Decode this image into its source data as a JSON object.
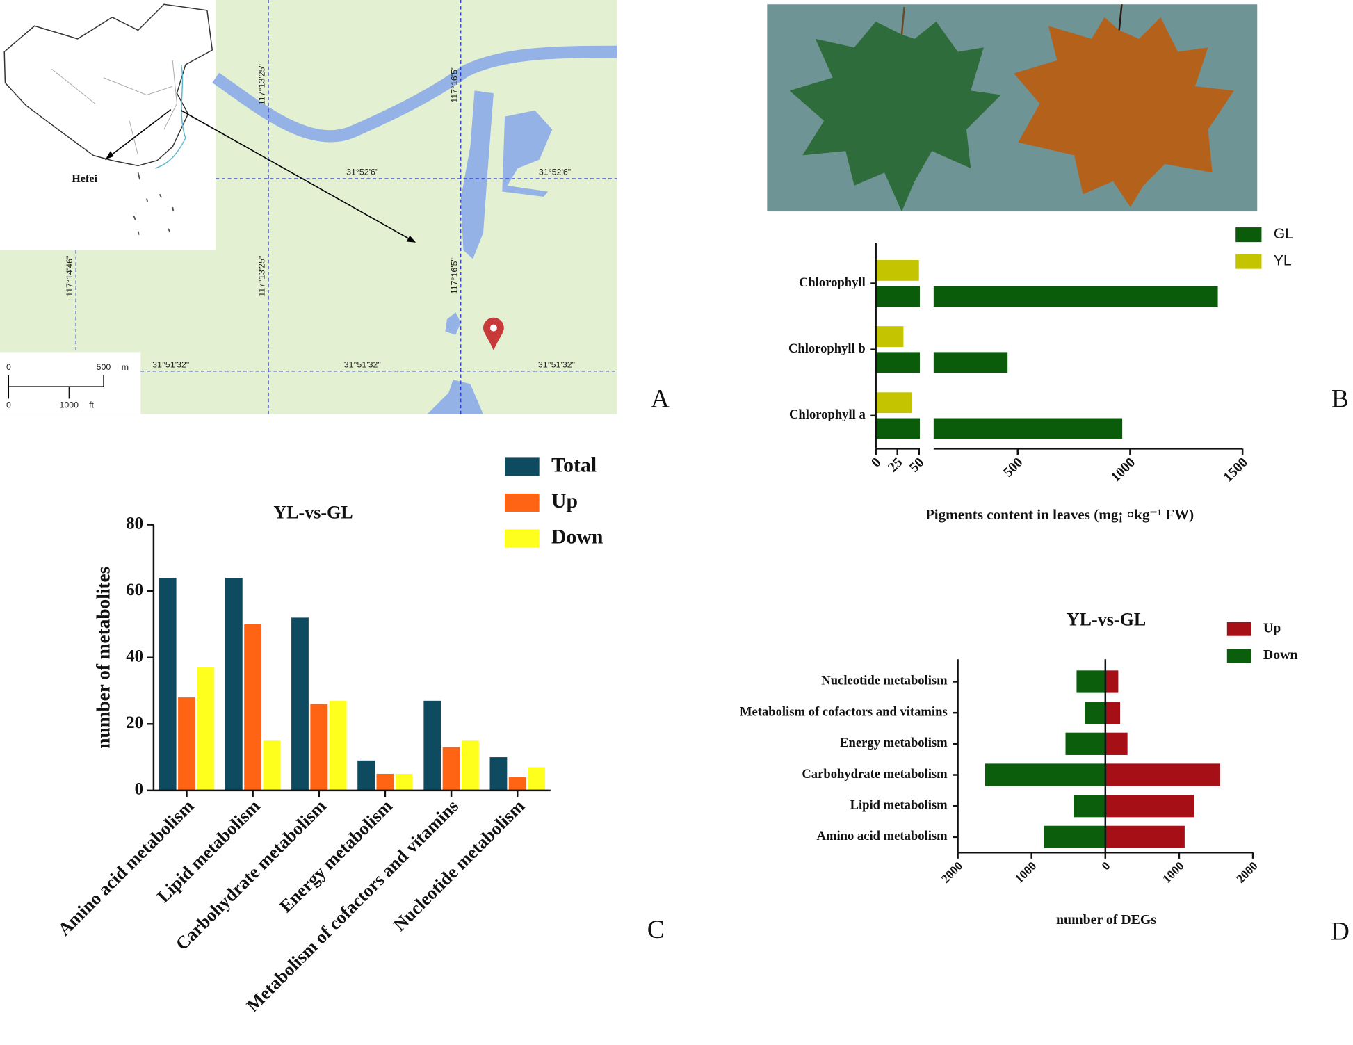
{
  "panels": [
    "A",
    "B",
    "C",
    "D"
  ],
  "map": {
    "meridians": [
      "117°14'46\"",
      "117°13'25\"",
      "117°16'5\""
    ],
    "parallels": [
      "31°52'6\"",
      "31°51'32\""
    ],
    "city": "Hefei",
    "scale_m": {
      "ticks": [
        0,
        500
      ],
      "unit": "m"
    },
    "scale_ft": {
      "ticks": [
        0,
        1000
      ],
      "unit": "ft"
    }
  },
  "chart_data": [
    {
      "type": "bar",
      "orientation": "horizontal",
      "barmode": "group",
      "categories": [
        "Chlorophyll",
        "Chlorophyll b",
        "Chlorophyll a"
      ],
      "series": [
        {
          "name": "GL",
          "color": "#0a5c0a",
          "values": [
            1390,
            455,
            965
          ]
        },
        {
          "name": "YL",
          "color": "#c4c400",
          "values": [
            74,
            32,
            42
          ]
        }
      ],
      "x_label": "Pigments content in leaves  (mg¡ ¤kg⁻¹ FW)",
      "xlim": [
        0,
        1500
      ],
      "xbreak": [
        50,
        130
      ],
      "xticks": [
        0,
        25,
        50,
        500,
        1000,
        1500
      ],
      "legend": "upper right"
    },
    {
      "type": "bar",
      "orientation": "vertical",
      "barmode": "group",
      "title": "YL-vs-GL",
      "categories": [
        "Amino acid metabolism",
        "Lipid metabolism",
        "Carbohydrate metabolism",
        "Energy metabolism",
        "Metabolism of cofactors and vitamins",
        "Nucleotide metabolism"
      ],
      "series": [
        {
          "name": "Total",
          "color": "#0e4a60",
          "values": [
            64,
            64,
            52,
            9,
            27,
            10
          ]
        },
        {
          "name": "Up",
          "color": "#ff6414",
          "values": [
            28,
            50,
            26,
            5,
            13,
            4
          ]
        },
        {
          "name": "Down",
          "color": "#ffff1e",
          "values": [
            37,
            15,
            27,
            5,
            15,
            7
          ]
        }
      ],
      "y_label": "number of metabolites",
      "ylim": [
        0,
        80
      ],
      "yticks": [
        0,
        20,
        40,
        60,
        80
      ],
      "legend": "upper right"
    },
    {
      "type": "bar",
      "orientation": "horizontal",
      "barmode": "relative",
      "title": "YL-vs-GL",
      "categories": [
        "Nucleotide metabolism",
        "Metabolism of cofactors and vitamins",
        "Energy metabolism",
        "Carbohydrate metabolism",
        "Lipid metabolism",
        "Amino acid metabolism"
      ],
      "series": [
        {
          "name": "Up",
          "color": "#a50f15",
          "values": [
            175,
            200,
            300,
            1555,
            1205,
            1075
          ]
        },
        {
          "name": "Down",
          "color": "#0b5e0b",
          "values": [
            -390,
            -280,
            -540,
            -1630,
            -430,
            -830
          ]
        }
      ],
      "x_label": "number of DEGs",
      "xlim": [
        -2000,
        2000
      ],
      "xticks": [
        {
          "value": -2000,
          "label": "2000"
        },
        {
          "value": -1000,
          "label": "1000"
        },
        0,
        1000,
        2000
      ],
      "legend": "upper right"
    }
  ]
}
